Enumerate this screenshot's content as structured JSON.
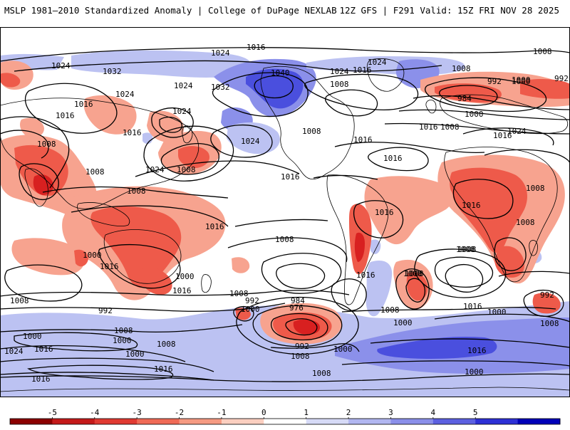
{
  "header": {
    "title_left": "MSLP 1981–2010 Standardized Anomaly | College of DuPage NEXLAB",
    "title_right": "12Z GFS | F291 Valid: 15Z FRI NOV 28 2025"
  },
  "colors": {
    "neg_strong": "#d82020",
    "neg_mid": "#ee5a4a",
    "neg_light": "#f7a38f",
    "pos_light": "#bcc2f2",
    "pos_mid": "#8b90ea",
    "pos_strong": "#4a4fde",
    "contour": "#000000",
    "coast": "#000000"
  },
  "isobar_labels": [
    {
      "id": "l01",
      "text": "1016"
    },
    {
      "id": "l02",
      "text": "1024"
    },
    {
      "id": "l03",
      "text": "1008"
    },
    {
      "id": "l04",
      "text": "1032"
    },
    {
      "id": "l05",
      "text": "1024"
    },
    {
      "id": "l06",
      "text": "1024"
    },
    {
      "id": "l07",
      "text": "1032"
    },
    {
      "id": "l08",
      "text": "1040"
    },
    {
      "id": "l09",
      "text": "1024"
    },
    {
      "id": "l10",
      "text": "1016"
    },
    {
      "id": "l11",
      "text": "1024"
    },
    {
      "id": "l12",
      "text": "1008"
    },
    {
      "id": "l13",
      "text": "992"
    },
    {
      "id": "l14",
      "text": "1000"
    },
    {
      "id": "l15",
      "text": "992"
    },
    {
      "id": "l16",
      "text": "1008"
    },
    {
      "id": "l17",
      "text": "984"
    },
    {
      "id": "l18",
      "text": "1000"
    },
    {
      "id": "l19",
      "text": "1016"
    },
    {
      "id": "l20",
      "text": "1024"
    },
    {
      "id": "l21",
      "text": "1016"
    },
    {
      "id": "l22",
      "text": "1024"
    },
    {
      "id": "l23",
      "text": "1016"
    },
    {
      "id": "l24",
      "text": "1008"
    },
    {
      "id": "l25",
      "text": "1024"
    },
    {
      "id": "l26",
      "text": "1016"
    },
    {
      "id": "l27",
      "text": "1008"
    },
    {
      "id": "l28",
      "text": "1016"
    },
    {
      "id": "l29",
      "text": "1024"
    },
    {
      "id": "l30",
      "text": "1016"
    },
    {
      "id": "l31",
      "text": "1016"
    },
    {
      "id": "l32",
      "text": "1008"
    },
    {
      "id": "l33",
      "text": "1008"
    },
    {
      "id": "l34",
      "text": "1024"
    },
    {
      "id": "l35",
      "text": "1016"
    },
    {
      "id": "l36",
      "text": "1008"
    },
    {
      "id": "l37",
      "text": "1008"
    },
    {
      "id": "l38",
      "text": "1008"
    },
    {
      "id": "l39",
      "text": "1016"
    },
    {
      "id": "l40",
      "text": "1008"
    },
    {
      "id": "l41",
      "text": "1016"
    },
    {
      "id": "l42",
      "text": "1008"
    },
    {
      "id": "l43",
      "text": "1000"
    },
    {
      "id": "l44",
      "text": "1008"
    },
    {
      "id": "l45",
      "text": "1000"
    },
    {
      "id": "l46",
      "text": "1016"
    },
    {
      "id": "l47",
      "text": "1016"
    },
    {
      "id": "l48",
      "text": "1008"
    },
    {
      "id": "l49",
      "text": "992"
    },
    {
      "id": "l50",
      "text": "1000"
    },
    {
      "id": "l51",
      "text": "1008"
    },
    {
      "id": "l52",
      "text": "1016"
    },
    {
      "id": "l53",
      "text": "1000"
    },
    {
      "id": "l54",
      "text": "1024"
    },
    {
      "id": "l55",
      "text": "1000"
    },
    {
      "id": "l56",
      "text": "1008"
    },
    {
      "id": "l57",
      "text": "1016"
    },
    {
      "id": "l58",
      "text": "1016"
    },
    {
      "id": "l59",
      "text": "1008"
    },
    {
      "id": "l60",
      "text": "992"
    },
    {
      "id": "l61",
      "text": "1000"
    },
    {
      "id": "l62",
      "text": "984"
    },
    {
      "id": "l63",
      "text": "976"
    },
    {
      "id": "l64",
      "text": "992"
    },
    {
      "id": "l65",
      "text": "1000"
    },
    {
      "id": "l66",
      "text": "1008"
    },
    {
      "id": "l67",
      "text": "1008"
    },
    {
      "id": "l68",
      "text": "1016"
    },
    {
      "id": "l69",
      "text": "1008"
    },
    {
      "id": "l70",
      "text": "1000"
    },
    {
      "id": "l71",
      "text": "1008"
    },
    {
      "id": "l72",
      "text": "1016"
    },
    {
      "id": "l73",
      "text": "1008"
    },
    {
      "id": "l74",
      "text": "1016"
    },
    {
      "id": "l75",
      "text": "1000"
    },
    {
      "id": "l76",
      "text": "992"
    },
    {
      "id": "l77",
      "text": "1000"
    },
    {
      "id": "l78",
      "text": "1008"
    },
    {
      "id": "l79",
      "text": "1016"
    },
    {
      "id": "l80",
      "text": "1008"
    },
    {
      "id": "l81",
      "text": "1000"
    }
  ],
  "colorbar": {
    "ticks": [
      "-5",
      "-4",
      "-3",
      "-2",
      "-1",
      "0",
      "1",
      "2",
      "3",
      "4",
      "5"
    ],
    "colors": [
      "#8b0000",
      "#c41a1a",
      "#e03a32",
      "#ef6a56",
      "#f59a82",
      "#fbcfc0",
      "#ffffff",
      "#d6daf6",
      "#b1b6f0",
      "#8a8fe9",
      "#5c60e0",
      "#2d30d5",
      "#0000b8"
    ]
  }
}
